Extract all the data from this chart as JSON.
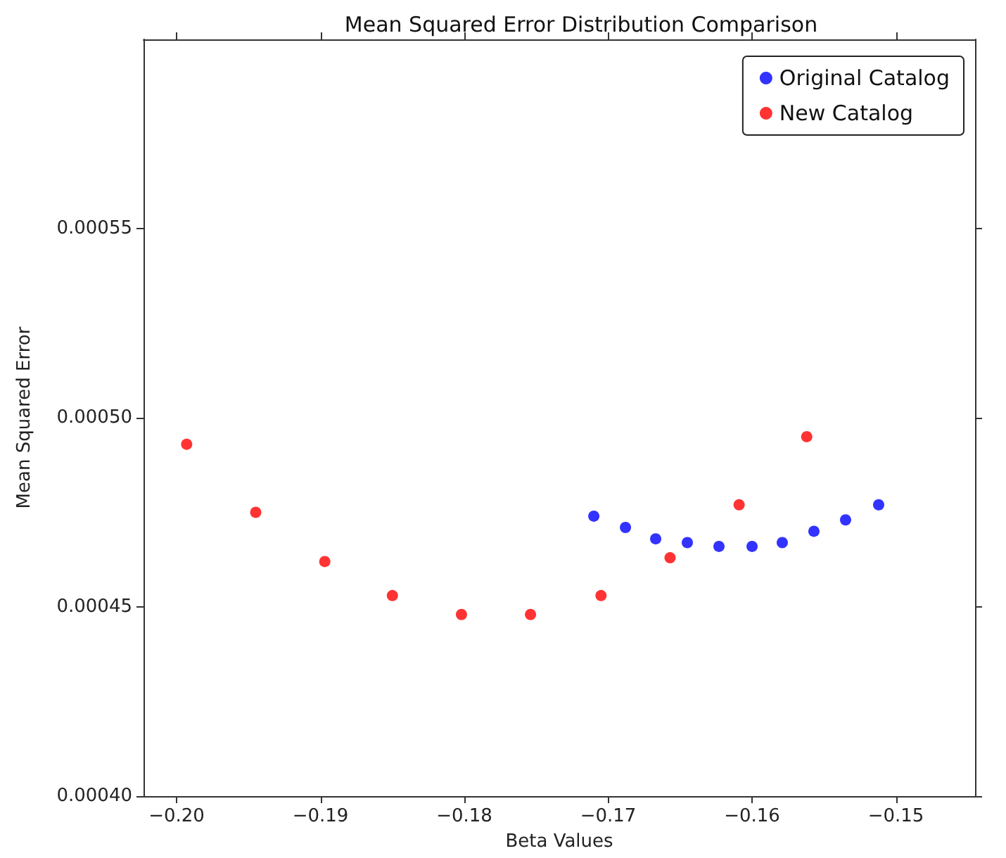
{
  "chart_data": {
    "type": "scatter",
    "title": "Mean Squared Error Distribution Comparison",
    "xlabel": "Beta Values",
    "ylabel": "Mean Squared Error",
    "series": [
      {
        "name": "Original Catalog",
        "color": "#0000ff",
        "x": [
          -0.171,
          -0.1688,
          -0.1667,
          -0.1645,
          -0.1623,
          -0.16,
          -0.1579,
          -0.1557,
          -0.1535,
          -0.1512
        ],
        "values": [
          0.000474,
          0.000471,
          0.000468,
          0.000467,
          0.000466,
          0.000466,
          0.000467,
          0.00047,
          0.000473,
          0.000477
        ]
      },
      {
        "name": "New Catalog",
        "color": "#ff0000",
        "x": [
          -0.1993,
          -0.1945,
          -0.1897,
          -0.185,
          -0.1802,
          -0.1754,
          -0.1705,
          -0.1657,
          -0.1609,
          -0.1562
        ],
        "values": [
          0.000493,
          0.000475,
          0.000462,
          0.000453,
          0.000448,
          0.000448,
          0.000453,
          0.000463,
          0.000477,
          0.000495
        ]
      }
    ],
    "xlim": [
      -0.2023,
      -0.1445
    ],
    "xticks": [
      {
        "value": -0.2,
        "label": "−0.20"
      },
      {
        "value": -0.19,
        "label": "−0.19"
      },
      {
        "value": -0.18,
        "label": "−0.18"
      },
      {
        "value": -0.17,
        "label": "−0.17"
      },
      {
        "value": -0.16,
        "label": "−0.16"
      },
      {
        "value": -0.15,
        "label": "−0.15"
      }
    ],
    "ylim": [
      0.0004,
      0.0006
    ],
    "yticks": [
      {
        "value": 0.0004,
        "label": "0.00040"
      },
      {
        "value": 0.00045,
        "label": "0.00045"
      },
      {
        "value": 0.0005,
        "label": "0.00050"
      },
      {
        "value": 0.00055,
        "label": "0.00055"
      }
    ],
    "legend": "top right",
    "marker": "circle",
    "grid": false
  }
}
